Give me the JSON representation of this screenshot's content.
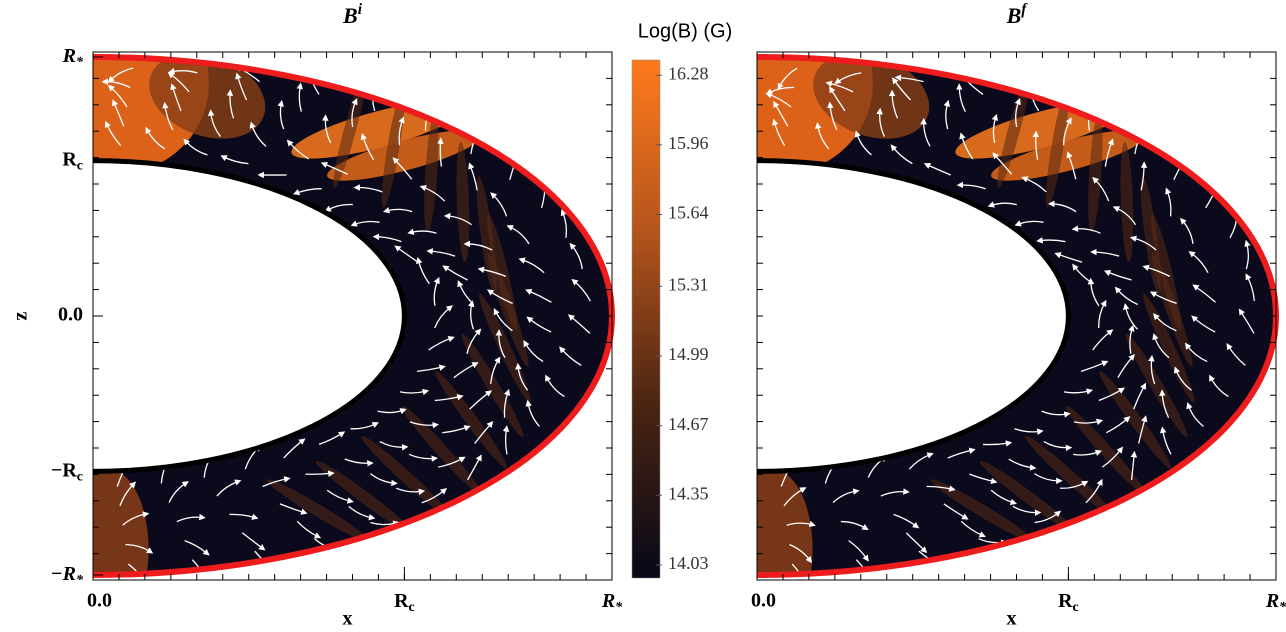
{
  "chart_data": [
    {
      "type": "field",
      "title": "Bi",
      "xlabel": "x",
      "ylabel": "z",
      "xlim": [
        0,
        1
      ],
      "ylim": [
        -1,
        1
      ],
      "xticks": [
        {
          "value": 0,
          "label": "0.0"
        },
        {
          "value": 0.6,
          "label": "Rc"
        },
        {
          "value": 1,
          "label": "R*"
        }
      ],
      "yticks": [
        {
          "value": 1,
          "label": "R*"
        },
        {
          "value": 0.6,
          "label": "Rc"
        },
        {
          "value": 0,
          "label": "0.0"
        },
        {
          "value": -0.6,
          "label": "−Rc"
        },
        {
          "value": -1,
          "label": "−R*"
        }
      ]
    },
    {
      "type": "field",
      "title": "Bf",
      "xlabel": "x",
      "xlim": [
        0,
        1
      ],
      "ylim": [
        -1,
        1
      ],
      "xticks": [
        {
          "value": 0,
          "label": "0.0"
        },
        {
          "value": 0.6,
          "label": "Rc"
        },
        {
          "value": 1,
          "label": "R*"
        }
      ]
    },
    {
      "type": "colorbar",
      "title": "Log(B) (G)",
      "ylim": [
        13.97,
        16.35
      ],
      "yticks": [
        14.03,
        14.35,
        14.67,
        14.99,
        15.31,
        15.64,
        15.96,
        16.28
      ],
      "colors": [
        "#070818",
        "#4a2412",
        "#b3541c",
        "#ff7a1c"
      ]
    }
  ]
}
